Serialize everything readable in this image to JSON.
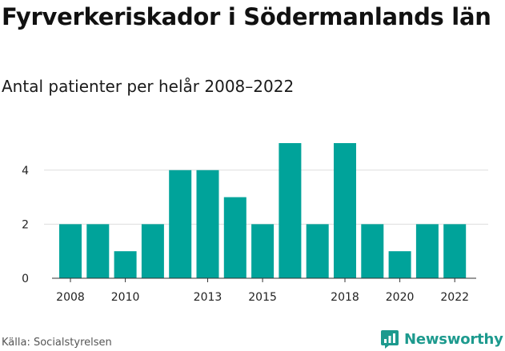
{
  "title": "Fyrverkeriskador i Södermanlands län",
  "subtitle": "Antal patienter per helår 2008–2022",
  "source": "Källa: Socialstyrelsen",
  "brand": {
    "name": "Newsworthy",
    "icon": "newsworthy-logo-icon"
  },
  "colors": {
    "bar": "#00a39a",
    "grid": "#dddddd",
    "brand": "#1d9a8e"
  },
  "chart_data": {
    "type": "bar",
    "categories": [
      "2008",
      "2009",
      "2010",
      "2011",
      "2012",
      "2013",
      "2014",
      "2015",
      "2016",
      "2017",
      "2018",
      "2019",
      "2020",
      "2021",
      "2022"
    ],
    "values": [
      2,
      2,
      1,
      2,
      4,
      4,
      3,
      2,
      5,
      2,
      5,
      2,
      1,
      2,
      2
    ],
    "x_tick_labels": [
      "2008",
      "2010",
      "2013",
      "2015",
      "2018",
      "2020",
      "2022"
    ],
    "y_ticks": [
      0,
      2,
      4
    ],
    "ylim": [
      0,
      5
    ],
    "grid": true
  }
}
